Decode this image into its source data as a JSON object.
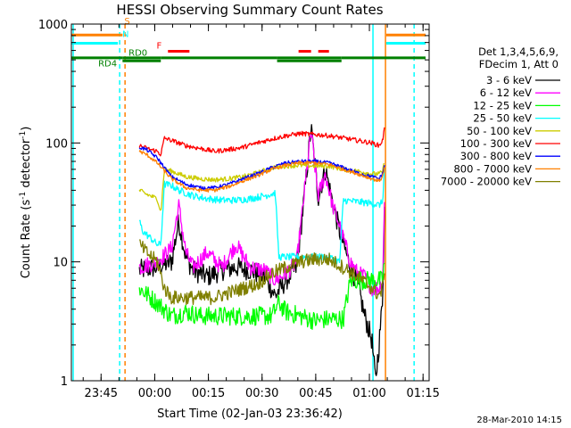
{
  "chart_data": {
    "type": "line",
    "title": "HESSI Observing Summary Count Rates",
    "xlabel": "Start Time (02-Jan-03 23:36:42)",
    "ylabel_main": "Count Rate (s",
    "ylabel_sup1": "-1",
    "ylabel_mid": " detector",
    "ylabel_sup2": "-1",
    "ylabel_end": ")",
    "yscale": "log",
    "ylim": [
      1,
      1000
    ],
    "xlim_minutes": [
      0,
      100
    ],
    "x_ticks": [
      {
        "m": 8.3,
        "label": "23:45"
      },
      {
        "m": 23.3,
        "label": "00:00"
      },
      {
        "m": 38.3,
        "label": "00:15"
      },
      {
        "m": 53.3,
        "label": "00:30"
      },
      {
        "m": 68.3,
        "label": "00:45"
      },
      {
        "m": 83.3,
        "label": "01:00"
      },
      {
        "m": 98.3,
        "label": "01:15"
      }
    ],
    "y_ticks": [
      {
        "v": 1,
        "label": "1"
      },
      {
        "v": 10,
        "label": "10"
      },
      {
        "v": 100,
        "label": "100"
      },
      {
        "v": 1000,
        "label": "1000"
      }
    ],
    "legend_header": [
      "Det 1,3,4,5,6,9,",
      "FDecim 1, Att 0"
    ],
    "legend_placement": "right",
    "series": [
      {
        "name": "3 - 6 keV",
        "color": "#000000",
        "points": [
          [
            19,
            8.5
          ],
          [
            24,
            9
          ],
          [
            28,
            10
          ],
          [
            30,
            22
          ],
          [
            32,
            11
          ],
          [
            34,
            8.5
          ],
          [
            38,
            7.5
          ],
          [
            42,
            8.5
          ],
          [
            46,
            9
          ],
          [
            50,
            8.5
          ],
          [
            54,
            7.5
          ],
          [
            57,
            5.2
          ],
          [
            60,
            7
          ],
          [
            63,
            9
          ],
          [
            65,
            33
          ],
          [
            67,
            135
          ],
          [
            69,
            35
          ],
          [
            71,
            60
          ],
          [
            73,
            32
          ],
          [
            75,
            18
          ],
          [
            78,
            9
          ],
          [
            80,
            6.5
          ],
          [
            82,
            3.5
          ],
          [
            84,
            2.2
          ],
          [
            85,
            1.0
          ],
          [
            86,
            2.0
          ],
          [
            87,
            5.0
          ],
          [
            87.5,
            28
          ]
        ]
      },
      {
        "name": "6 - 12 keV",
        "color": "#ff00ff",
        "points": [
          [
            19,
            9
          ],
          [
            24,
            10
          ],
          [
            28,
            13
          ],
          [
            30,
            30
          ],
          [
            32,
            12
          ],
          [
            34,
            9
          ],
          [
            38,
            12
          ],
          [
            42,
            9
          ],
          [
            46,
            14
          ],
          [
            50,
            9
          ],
          [
            54,
            8.5
          ],
          [
            57,
            7
          ],
          [
            60,
            8
          ],
          [
            63,
            10
          ],
          [
            65,
            35
          ],
          [
            67,
            125
          ],
          [
            69,
            36
          ],
          [
            71,
            55
          ],
          [
            73,
            30
          ],
          [
            75,
            20
          ],
          [
            78,
            10
          ],
          [
            80,
            8
          ],
          [
            82,
            7.5
          ],
          [
            84,
            6
          ],
          [
            85,
            6
          ],
          [
            86,
            6
          ],
          [
            87,
            7
          ],
          [
            87.5,
            30
          ]
        ]
      },
      {
        "name": "12 - 25 keV",
        "color": "#00ff00",
        "points": [
          [
            19,
            6
          ],
          [
            24,
            4.5
          ],
          [
            28,
            3.5
          ],
          [
            32,
            3.8
          ],
          [
            36,
            3.5
          ],
          [
            40,
            3.5
          ],
          [
            44,
            3.5
          ],
          [
            48,
            3.5
          ],
          [
            52,
            3.5
          ],
          [
            56,
            3.5
          ],
          [
            58,
            4.5
          ],
          [
            60,
            3.8
          ],
          [
            64,
            3.5
          ],
          [
            68,
            3.2
          ],
          [
            72,
            3.3
          ],
          [
            76,
            3.3
          ],
          [
            78,
            7
          ],
          [
            80,
            7
          ],
          [
            82,
            7
          ],
          [
            85,
            7
          ],
          [
            87,
            7
          ],
          [
            87.5,
            10
          ]
        ]
      },
      {
        "name": "25 - 50 keV",
        "color": "#00ffff",
        "points": [
          [
            19,
            22
          ],
          [
            20,
            18
          ],
          [
            22,
            16
          ],
          [
            24,
            14
          ],
          [
            25,
            14
          ],
          [
            26,
            45
          ],
          [
            28,
            44
          ],
          [
            30,
            40
          ],
          [
            34,
            36
          ],
          [
            38,
            34
          ],
          [
            42,
            33
          ],
          [
            46,
            33
          ],
          [
            50,
            34
          ],
          [
            54,
            36
          ],
          [
            57,
            38
          ],
          [
            58,
            11
          ],
          [
            60,
            11
          ],
          [
            64,
            11
          ],
          [
            68,
            11
          ],
          [
            72,
            11
          ],
          [
            75,
            10
          ],
          [
            76,
            33
          ],
          [
            80,
            32
          ],
          [
            84,
            31
          ],
          [
            86,
            30
          ],
          [
            87,
            32
          ],
          [
            87.5,
            60
          ]
        ]
      },
      {
        "name": "50 - 100 keV",
        "color": "#cccc00",
        "points": [
          [
            19,
            40
          ],
          [
            21,
            37
          ],
          [
            24,
            34
          ],
          [
            25,
            26
          ],
          [
            26,
            60
          ],
          [
            28,
            58
          ],
          [
            32,
            52
          ],
          [
            36,
            50
          ],
          [
            40,
            49
          ],
          [
            44,
            50
          ],
          [
            48,
            52
          ],
          [
            52,
            56
          ],
          [
            56,
            62
          ],
          [
            60,
            64
          ],
          [
            64,
            65
          ],
          [
            68,
            64
          ],
          [
            72,
            64
          ],
          [
            76,
            60
          ],
          [
            80,
            58
          ],
          [
            84,
            55
          ],
          [
            86,
            55
          ],
          [
            87,
            57
          ],
          [
            87.5,
            70
          ]
        ]
      },
      {
        "name": "100 - 300 keV",
        "color": "#ff0000",
        "points": [
          [
            19,
            95
          ],
          [
            21,
            90
          ],
          [
            24,
            85
          ],
          [
            25,
            80
          ],
          [
            26,
            110
          ],
          [
            28,
            105
          ],
          [
            32,
            95
          ],
          [
            36,
            90
          ],
          [
            40,
            85
          ],
          [
            44,
            88
          ],
          [
            48,
            92
          ],
          [
            52,
            100
          ],
          [
            56,
            108
          ],
          [
            60,
            115
          ],
          [
            64,
            120
          ],
          [
            68,
            118
          ],
          [
            72,
            115
          ],
          [
            76,
            110
          ],
          [
            80,
            105
          ],
          [
            84,
            100
          ],
          [
            86,
            95
          ],
          [
            87,
            105
          ],
          [
            87.5,
            130
          ]
        ]
      },
      {
        "name": "300 - 800 keV",
        "color": "#0000ff",
        "points": [
          [
            19,
            92
          ],
          [
            21,
            88
          ],
          [
            24,
            75
          ],
          [
            26,
            62
          ],
          [
            28,
            52
          ],
          [
            32,
            45
          ],
          [
            36,
            42
          ],
          [
            40,
            42
          ],
          [
            44,
            45
          ],
          [
            48,
            50
          ],
          [
            52,
            55
          ],
          [
            56,
            62
          ],
          [
            60,
            68
          ],
          [
            64,
            70
          ],
          [
            68,
            70
          ],
          [
            72,
            68
          ],
          [
            76,
            62
          ],
          [
            80,
            56
          ],
          [
            84,
            52
          ],
          [
            86,
            50
          ],
          [
            87,
            55
          ],
          [
            87.5,
            65
          ]
        ]
      },
      {
        "name": "800 - 7000 keV",
        "color": "#ff8000",
        "points": [
          [
            19,
            85
          ],
          [
            21,
            80
          ],
          [
            24,
            68
          ],
          [
            26,
            58
          ],
          [
            28,
            50
          ],
          [
            32,
            42
          ],
          [
            36,
            40
          ],
          [
            40,
            40
          ],
          [
            44,
            43
          ],
          [
            48,
            48
          ],
          [
            52,
            53
          ],
          [
            56,
            60
          ],
          [
            60,
            65
          ],
          [
            64,
            68
          ],
          [
            68,
            68
          ],
          [
            72,
            66
          ],
          [
            76,
            60
          ],
          [
            80,
            55
          ],
          [
            84,
            50
          ],
          [
            86,
            48
          ],
          [
            87,
            52
          ],
          [
            87.5,
            62
          ]
        ]
      },
      {
        "name": "7000 - 20000 keV",
        "color": "#808000",
        "points": [
          [
            19,
            14
          ],
          [
            21,
            12
          ],
          [
            24,
            10
          ],
          [
            26,
            6
          ],
          [
            28,
            5
          ],
          [
            32,
            5
          ],
          [
            36,
            5
          ],
          [
            40,
            5
          ],
          [
            44,
            5.5
          ],
          [
            48,
            6
          ],
          [
            52,
            6.5
          ],
          [
            56,
            8
          ],
          [
            60,
            9
          ],
          [
            64,
            10
          ],
          [
            68,
            10.5
          ],
          [
            72,
            10.5
          ],
          [
            76,
            9
          ],
          [
            80,
            7.5
          ],
          [
            84,
            6
          ],
          [
            86,
            5.2
          ],
          [
            87,
            6
          ],
          [
            87.5,
            9
          ]
        ]
      }
    ],
    "status_bars": [
      {
        "label": "S",
        "color": "#ff8000",
        "y_level": 810,
        "segments": [
          [
            0,
            14.3
          ],
          [
            88,
            99
          ]
        ]
      },
      {
        "label": "N",
        "color": "#00ffff",
        "y_level": 690,
        "segments": [
          [
            0,
            13
          ],
          [
            88,
            99
          ]
        ]
      },
      {
        "label": "F",
        "color": "#ff0000",
        "y_level": 590,
        "segments": [
          [
            27,
            33
          ],
          [
            63.5,
            67
          ],
          [
            69,
            72
          ]
        ]
      },
      {
        "label": "RD0",
        "color": "#008000",
        "y_level": 520,
        "segments": [
          [
            0,
            14.3
          ],
          [
            14.3,
            25
          ],
          [
            25,
            57.5
          ],
          [
            57.5,
            75.5
          ],
          [
            75.5,
            99
          ]
        ]
      },
      {
        "label": "RD4",
        "color": "#008000",
        "y_level": 490,
        "segments": [
          [
            14.3,
            25
          ],
          [
            57.5,
            75.5
          ]
        ]
      }
    ],
    "vertical_markers": [
      {
        "m": 0.5,
        "color": "#00ffff",
        "style": "solid"
      },
      {
        "m": 13.5,
        "color": "#00ffff",
        "style": "dashed"
      },
      {
        "m": 15.0,
        "color": "#ff8000",
        "style": "dashed"
      },
      {
        "m": 84.3,
        "color": "#00ffff",
        "style": "solid"
      },
      {
        "m": 87.8,
        "color": "#ff8000",
        "style": "solid"
      },
      {
        "m": 95.8,
        "color": "#00ffff",
        "style": "dashed"
      }
    ],
    "footer_date": "28-Mar-2010 14:15"
  }
}
